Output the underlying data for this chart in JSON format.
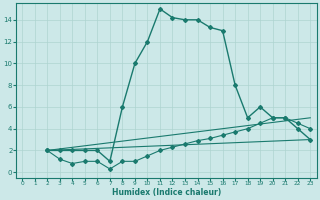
{
  "xlabel": "Humidex (Indice chaleur)",
  "ylabel": "",
  "bg_color": "#cce8e8",
  "grid_color": "#aed4d0",
  "line_color": "#1a7a6e",
  "xlim": [
    -0.5,
    23.5
  ],
  "ylim": [
    -0.5,
    15.5
  ],
  "xticks": [
    0,
    1,
    2,
    3,
    4,
    5,
    6,
    7,
    8,
    9,
    10,
    11,
    12,
    13,
    14,
    15,
    16,
    17,
    18,
    19,
    20,
    21,
    22,
    23
  ],
  "yticks": [
    0,
    2,
    4,
    6,
    8,
    10,
    12,
    14
  ],
  "series": [
    {
      "x": [
        2,
        3,
        4,
        5,
        6,
        7,
        8,
        9,
        10,
        11,
        12,
        13,
        14,
        15,
        16,
        17,
        18,
        19,
        20,
        21,
        22,
        23
      ],
      "y": [
        2,
        2,
        2,
        2,
        2,
        1,
        6,
        10,
        12,
        15,
        14.2,
        14,
        14,
        13.3,
        13,
        8,
        5,
        6,
        5,
        5,
        4,
        3
      ],
      "style": "-",
      "marker": "D",
      "markersize": 2.0,
      "linewidth": 1.0
    },
    {
      "x": [
        2,
        3,
        4,
        5,
        6,
        7,
        8,
        9,
        10,
        11,
        12,
        13,
        14,
        15,
        16,
        17,
        18,
        19,
        20,
        21,
        22,
        23
      ],
      "y": [
        2,
        1.2,
        0.8,
        1.0,
        1.0,
        0.3,
        1.0,
        1.0,
        1.5,
        2.0,
        2.3,
        2.6,
        2.9,
        3.1,
        3.4,
        3.7,
        4.0,
        4.5,
        5.0,
        5.0,
        4.5,
        4.0
      ],
      "style": "-",
      "marker": "D",
      "markersize": 2.0,
      "linewidth": 0.8
    },
    {
      "x": [
        2,
        23
      ],
      "y": [
        2,
        5.0
      ],
      "style": "-",
      "marker": "None",
      "markersize": 0,
      "linewidth": 0.8
    },
    {
      "x": [
        2,
        23
      ],
      "y": [
        2,
        3.0
      ],
      "style": "-",
      "marker": "None",
      "markersize": 0,
      "linewidth": 0.8
    }
  ]
}
